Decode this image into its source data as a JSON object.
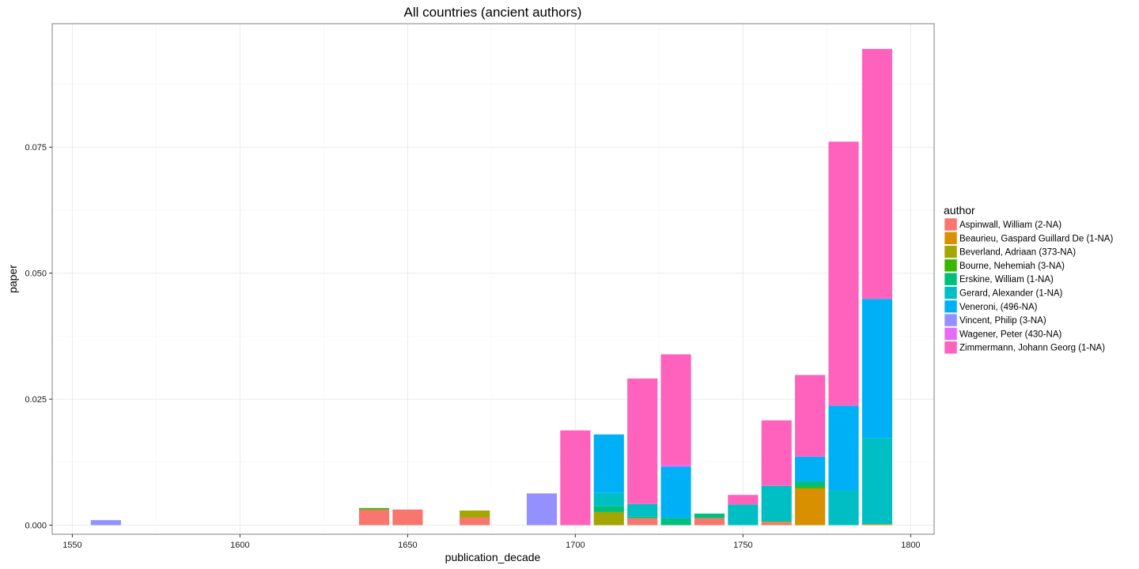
{
  "chart_data": {
    "type": "bar",
    "stacked": true,
    "title": "All countries (ancient authors)",
    "xlabel": "publication_decade",
    "ylabel": "paper",
    "xlim": [
      1544,
      1807
    ],
    "ylim": [
      -0.0018,
      0.0995
    ],
    "x_ticks": [
      1550,
      1600,
      1650,
      1700,
      1750,
      1800
    ],
    "y_ticks": [
      0.0,
      0.025,
      0.05,
      0.075
    ],
    "y_tick_labels": [
      "0.000",
      "0.025",
      "0.050",
      "0.075"
    ],
    "bar_width": 9,
    "grid": true,
    "legend_position": "right",
    "legend_title": "author",
    "categories": [
      1560,
      1640,
      1650,
      1670,
      1690,
      1700,
      1710,
      1720,
      1730,
      1740,
      1750,
      1760,
      1770,
      1780,
      1790
    ],
    "series": [
      {
        "name": "Aspinwall, William (2-NA)",
        "color": "#F8766D",
        "values": [
          0,
          0.0031,
          0.0031,
          0.0015,
          0,
          0,
          0,
          0.0014,
          0,
          0.0014,
          0,
          0.0005,
          0,
          0,
          0
        ]
      },
      {
        "name": "Beaurieu, Gaspard Guillard De (1-NA)",
        "color": "#D89000",
        "values": [
          0,
          0,
          0,
          0,
          0,
          0,
          0,
          0,
          0,
          0,
          0,
          0.0002,
          0.0073,
          0,
          0.0002
        ]
      },
      {
        "name": "Beverland, Adriaan (373-NA)",
        "color": "#A3A500",
        "values": [
          0,
          0,
          0,
          0.0014,
          0,
          0,
          0.0026,
          0,
          0,
          0,
          0,
          0,
          0,
          0,
          0
        ]
      },
      {
        "name": "Bourne, Nehemiah (3-NA)",
        "color": "#39B600",
        "values": [
          0,
          0.0003,
          0,
          0,
          0,
          0,
          0,
          0,
          0,
          0,
          0,
          0,
          0.0003,
          0,
          0
        ]
      },
      {
        "name": "Erskine, William (1-NA)",
        "color": "#00BF7D",
        "values": [
          0,
          0,
          0,
          0,
          0,
          0,
          0.0012,
          0.0003,
          0.0014,
          0.0009,
          0,
          0,
          0.0011,
          0,
          0
        ]
      },
      {
        "name": "Gerard, Alexander (1-NA)",
        "color": "#00BFC4",
        "values": [
          0,
          0,
          0,
          0,
          0,
          0,
          0.0026,
          0.0025,
          0,
          0,
          0.0041,
          0.0071,
          0,
          0.0069,
          0.0171
        ]
      },
      {
        "name": "Veneroni,  (496-NA)",
        "color": "#00B0F6",
        "values": [
          0,
          0,
          0,
          0,
          0,
          0,
          0.0116,
          0,
          0.0102,
          0,
          0,
          0,
          0.0049,
          0.0168,
          0.0276
        ]
      },
      {
        "name": "Vincent, Philip (3-NA)",
        "color": "#9590FF",
        "values": [
          0.001,
          0,
          0,
          0,
          0.0063,
          0,
          0,
          0,
          0,
          0,
          0,
          0,
          0,
          0,
          0
        ]
      },
      {
        "name": "Wagener, Peter (430-NA)",
        "color": "#E76BF3",
        "values": [
          0,
          0,
          0,
          0,
          0,
          0,
          0,
          0,
          0.0004,
          0,
          0,
          0,
          0,
          0,
          0
        ]
      },
      {
        "name": "Zimmermann, Johann Georg (1-NA)",
        "color": "#FF62BC",
        "values": [
          0,
          0,
          0,
          0,
          0,
          0.0188,
          0,
          0.0249,
          0.0219,
          0,
          0.0019,
          0.013,
          0.0162,
          0.0524,
          0.0496
        ]
      }
    ]
  }
}
